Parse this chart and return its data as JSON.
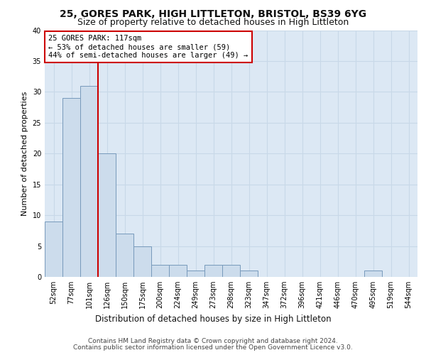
{
  "title1": "25, GORES PARK, HIGH LITTLETON, BRISTOL, BS39 6YG",
  "title2": "Size of property relative to detached houses in High Littleton",
  "xlabel": "Distribution of detached houses by size in High Littleton",
  "ylabel": "Number of detached properties",
  "bar_labels": [
    "52sqm",
    "77sqm",
    "101sqm",
    "126sqm",
    "150sqm",
    "175sqm",
    "200sqm",
    "224sqm",
    "249sqm",
    "273sqm",
    "298sqm",
    "323sqm",
    "347sqm",
    "372sqm",
    "396sqm",
    "421sqm",
    "446sqm",
    "470sqm",
    "495sqm",
    "519sqm",
    "544sqm"
  ],
  "bar_values": [
    9,
    29,
    31,
    20,
    7,
    5,
    2,
    2,
    1,
    2,
    2,
    1,
    0,
    0,
    0,
    0,
    0,
    0,
    1,
    0,
    0
  ],
  "bar_color": "#ccdcec",
  "bar_edge_color": "#7799bb",
  "grid_color": "#c8d8e8",
  "bg_color": "#dce8f4",
  "annotation_line1": "25 GORES PARK: 117sqm",
  "annotation_line2": "← 53% of detached houses are smaller (59)",
  "annotation_line3": "44% of semi-detached houses are larger (49) →",
  "annotation_box_color": "#cc0000",
  "vline_x": 2.5,
  "vline_color": "#cc0000",
  "ylim": [
    0,
    40
  ],
  "yticks": [
    0,
    5,
    10,
    15,
    20,
    25,
    30,
    35,
    40
  ],
  "footnote1": "Contains HM Land Registry data © Crown copyright and database right 2024.",
  "footnote2": "Contains public sector information licensed under the Open Government Licence v3.0.",
  "title1_fontsize": 10,
  "title2_fontsize": 9,
  "xlabel_fontsize": 8.5,
  "ylabel_fontsize": 8,
  "tick_fontsize": 7,
  "annot_fontsize": 7.5,
  "footnote_fontsize": 6.5
}
